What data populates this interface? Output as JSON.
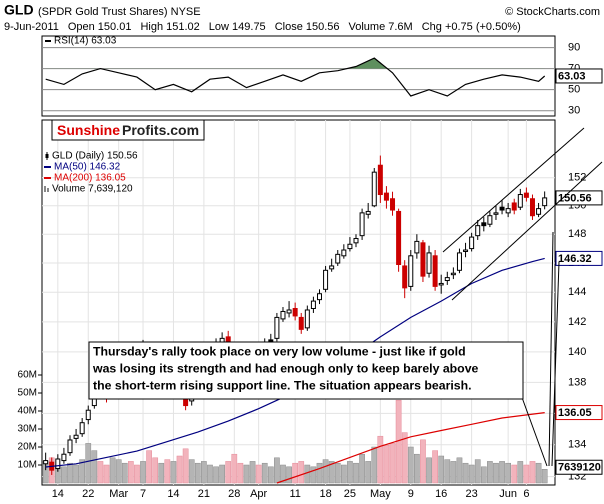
{
  "header": {
    "symbol": "GLD",
    "name": "(SPDR Gold Trust Shares) NYSE",
    "source": "© StockCharts.com",
    "date": "9-Jun-2011",
    "stats": [
      "Open 150.01",
      "High 151.02",
      "Low 149.75",
      "Close 150.56",
      "Volume 7.6M",
      "Chg +0.75 (+0.50%)"
    ]
  },
  "logo": {
    "part1": "Sunshine",
    "part2": "Profits.com"
  },
  "annotation": {
    "lines": [
      "Thursday's rally took place on very low volume - just like if gold",
      "was losing its strength and had enough only to keep barely above",
      "the short-term rising support line. The situation appears bearish."
    ]
  },
  "chart_data": [
    {
      "type": "line",
      "legend": "RSI(14) 63.03",
      "value_label": "63.03",
      "color": "#000000",
      "shade_above": 70,
      "shade_color": "#5e8f5e",
      "x": [
        0,
        3,
        6,
        9,
        12,
        15,
        18,
        21,
        24,
        27,
        30,
        33,
        36,
        39,
        42,
        45,
        48,
        51,
        54,
        57,
        60,
        63,
        66,
        69,
        72,
        75,
        78,
        81,
        82
      ],
      "values": [
        60,
        55,
        65,
        70,
        66,
        62,
        50,
        55,
        48,
        60,
        62,
        52,
        58,
        64,
        58,
        66,
        68,
        72,
        80,
        66,
        44,
        50,
        44,
        55,
        60,
        64,
        62,
        58,
        63.03
      ],
      "xlim": [
        -0.6,
        83.7
      ],
      "ylim": [
        25,
        101
      ],
      "yticks": [
        30,
        50,
        70,
        90
      ]
    },
    {
      "type": "candlestick",
      "legend": "GLD (Daily) 150.56",
      "value_label": "150.56",
      "up_color": "#000000",
      "down_color": "#cc0000",
      "log_scale": true,
      "grid": true,
      "x": [
        0,
        1,
        2,
        3,
        4,
        5,
        6,
        7,
        8,
        9,
        10,
        11,
        12,
        13,
        14,
        15,
        16,
        17,
        18,
        19,
        20,
        21,
        22,
        23,
        24,
        25,
        26,
        27,
        28,
        29,
        30,
        31,
        32,
        33,
        34,
        35,
        36,
        37,
        38,
        39,
        40,
        41,
        42,
        43,
        44,
        45,
        46,
        47,
        48,
        49,
        50,
        51,
        52,
        53,
        54,
        55,
        56,
        57,
        58,
        59,
        60,
        61,
        62,
        63,
        64,
        65,
        66,
        67,
        68,
        69,
        70,
        71,
        72,
        73,
        74,
        75,
        76,
        77,
        78,
        79,
        80,
        81,
        82
      ],
      "open": [
        132.8,
        132.9,
        132.5,
        133.0,
        133.5,
        134.4,
        134.7,
        135.6,
        136.5,
        137.8,
        137.5,
        137.2,
        138.5,
        139.3,
        140.0,
        139.8,
        139.8,
        140.0,
        139.1,
        138.3,
        138.8,
        138.0,
        138.4,
        137.0,
        136.8,
        138.1,
        138.9,
        139.8,
        140.4,
        140.4,
        141.0,
        140.0,
        138.9,
        138.7,
        139.4,
        140.0,
        139.9,
        140.8,
        140.9,
        142.2,
        142.6,
        142.9,
        142.3,
        141.6,
        142.9,
        143.5,
        144.2,
        145.6,
        146.0,
        146.5,
        147.0,
        147.4,
        147.9,
        149.4,
        150.0,
        152.9,
        150.9,
        150.5,
        149.6,
        145.8,
        144.4,
        146.7,
        147.4,
        145.3,
        146.5,
        144.5,
        144.8,
        145.2,
        145.5,
        146.8,
        147.0,
        147.9,
        148.8,
        148.7,
        149.4,
        149.9,
        149.5,
        150.2,
        149.9,
        150.9,
        150.5,
        149.4,
        150.01
      ],
      "high": [
        133.5,
        133.2,
        133.4,
        133.8,
        134.6,
        135.0,
        135.7,
        136.5,
        137.9,
        138.2,
        137.9,
        138.6,
        139.6,
        140.2,
        140.4,
        140.3,
        140.8,
        140.4,
        139.4,
        139.3,
        139.2,
        138.9,
        138.7,
        137.4,
        138.2,
        139.0,
        140.0,
        140.5,
        140.9,
        141.3,
        141.4,
        140.3,
        139.2,
        139.5,
        140.5,
        140.4,
        140.9,
        141.2,
        142.6,
        143.0,
        143.4,
        143.3,
        142.6,
        143.1,
        143.7,
        144.2,
        145.8,
        146.3,
        146.9,
        147.3,
        147.8,
        148.0,
        149.8,
        150.2,
        152.7,
        153.6,
        151.4,
        151.0,
        149.8,
        146.2,
        146.9,
        148.0,
        147.6,
        147.2,
        146.9,
        145.2,
        145.4,
        145.7,
        147.0,
        147.4,
        148.1,
        149.0,
        149.2,
        149.6,
        150.0,
        150.4,
        150.2,
        150.5,
        151.2,
        151.3,
        150.8,
        150.2,
        151.02
      ],
      "low": [
        132.4,
        132.1,
        132.3,
        132.8,
        133.3,
        134.1,
        134.5,
        135.3,
        136.3,
        137.0,
        136.7,
        136.9,
        138.3,
        139.0,
        139.4,
        139.2,
        139.5,
        138.8,
        137.9,
        138.0,
        138.0,
        137.7,
        137.1,
        136.2,
        136.5,
        137.9,
        138.6,
        139.6,
        140.0,
        140.1,
        140.2,
        138.4,
        138.3,
        138.5,
        139.2,
        139.4,
        139.7,
        140.4,
        140.7,
        142.0,
        142.3,
        142.1,
        141.2,
        141.4,
        142.6,
        143.2,
        144.0,
        145.4,
        145.8,
        146.3,
        146.8,
        147.1,
        147.6,
        149.1,
        149.9,
        150.2,
        149.8,
        149.3,
        145.4,
        143.6,
        144.1,
        146.3,
        144.7,
        145.0,
        144.1,
        143.9,
        144.5,
        144.9,
        145.3,
        146.4,
        146.8,
        147.6,
        148.2,
        148.5,
        149.0,
        149.4,
        149.2,
        149.4,
        149.7,
        150.3,
        149.0,
        149.2,
        149.75
      ],
      "close": [
        133.0,
        132.4,
        133.1,
        133.4,
        134.3,
        134.6,
        135.4,
        136.2,
        137.6,
        137.3,
        137.0,
        138.3,
        139.2,
        139.9,
        139.7,
        139.6,
        140.2,
        139.0,
        138.2,
        138.9,
        138.2,
        138.5,
        137.3,
        136.5,
        137.9,
        138.7,
        139.7,
        140.2,
        140.3,
        140.9,
        140.4,
        138.7,
        138.6,
        139.2,
        140.2,
        139.7,
        140.6,
        140.6,
        142.3,
        142.7,
        142.8,
        142.4,
        141.5,
        142.8,
        143.4,
        143.9,
        145.5,
        145.8,
        146.6,
        146.9,
        147.3,
        147.7,
        149.5,
        149.6,
        152.4,
        150.8,
        150.4,
        149.7,
        145.9,
        144.3,
        146.5,
        147.5,
        145.1,
        146.7,
        144.4,
        144.6,
        145.0,
        145.3,
        146.7,
        146.9,
        147.8,
        148.6,
        148.6,
        149.3,
        149.5,
        149.7,
        149.8,
        149.7,
        150.8,
        150.6,
        149.3,
        149.8,
        150.56
      ],
      "lines": [
        {
          "name": "MA(50) 146.32",
          "color": "#000080",
          "value_label": "146.32",
          "x": [
            0,
            5,
            10,
            15,
            20,
            25,
            30,
            35,
            40,
            45,
            50,
            55,
            60,
            65,
            70,
            75,
            80,
            82
          ],
          "values": [
            132.6,
            132.8,
            133.2,
            133.6,
            134.2,
            134.8,
            135.5,
            136.3,
            137.2,
            138.3,
            139.6,
            141.0,
            142.3,
            143.4,
            144.6,
            145.5,
            146.1,
            146.32
          ]
        },
        {
          "name": "MA(200) 136.05",
          "color": "#dd0000",
          "value_label": "136.05",
          "x": [
            38,
            45,
            50,
            55,
            60,
            65,
            70,
            75,
            82
          ],
          "values": [
            131.6,
            132.5,
            133.2,
            133.9,
            134.5,
            134.9,
            135.3,
            135.7,
            136.05
          ]
        }
      ],
      "volume": {
        "name": "Volume 7,639,120",
        "value_label": "7639120",
        "up_color": "#b4b4b4",
        "down_color": "#f2b3bc",
        "values": [
          12000000,
          14000000,
          10000000,
          9000000,
          11000000,
          10000000,
          13000000,
          22000000,
          18000000,
          12000000,
          10000000,
          14000000,
          13000000,
          11000000,
          12000000,
          10000000,
          12000000,
          18000000,
          14000000,
          11000000,
          13000000,
          12000000,
          15000000,
          19000000,
          13000000,
          11000000,
          12000000,
          10000000,
          9000000,
          10000000,
          12000000,
          16000000,
          11000000,
          10000000,
          12000000,
          10000000,
          11000000,
          9000000,
          14000000,
          10000000,
          9000000,
          11000000,
          12000000,
          10000000,
          9000000,
          11000000,
          13000000,
          12000000,
          11000000,
          10000000,
          12000000,
          11000000,
          16000000,
          12000000,
          20000000,
          26000000,
          21000000,
          22000000,
          46000000,
          28000000,
          20000000,
          16000000,
          24000000,
          14000000,
          18000000,
          15000000,
          13000000,
          12000000,
          14000000,
          11000000,
          10000000,
          13000000,
          9000000,
          12000000,
          11000000,
          12000000,
          11000000,
          10000000,
          12000000,
          10000000,
          12000000,
          11000000,
          7639120
        ],
        "y2lim": [
          0,
          60000000
        ],
        "y2ticks": [
          {
            "value": 10000000,
            "label": "10M"
          },
          {
            "value": 20000000,
            "label": "20M"
          },
          {
            "value": 30000000,
            "label": "30M"
          },
          {
            "value": 40000000,
            "label": "40M"
          },
          {
            "value": 50000000,
            "label": "50M"
          },
          {
            "value": 60000000,
            "label": "60M"
          }
        ]
      },
      "xlim": [
        -0.6,
        83.7
      ],
      "ylim": [
        131.6,
        156.2
      ],
      "yticks": [
        132,
        134,
        136,
        138,
        140,
        142,
        144,
        146,
        148,
        150,
        152
      ],
      "xticks": [
        {
          "value": 2,
          "label": "14"
        },
        {
          "value": 7,
          "label": "22"
        },
        {
          "value": 12,
          "label": "Mar"
        },
        {
          "value": 16,
          "label": "7"
        },
        {
          "value": 21,
          "label": "14"
        },
        {
          "value": 26,
          "label": "21"
        },
        {
          "value": 31,
          "label": "28"
        },
        {
          "value": 35,
          "label": "Apr"
        },
        {
          "value": 41,
          "label": "11"
        },
        {
          "value": 46,
          "label": "18"
        },
        {
          "value": 50,
          "label": "25"
        },
        {
          "value": 55,
          "label": "May"
        },
        {
          "value": 60,
          "label": "9"
        },
        {
          "value": 65,
          "label": "16"
        },
        {
          "value": 70,
          "label": "23"
        },
        {
          "value": 76,
          "label": "Jun"
        },
        {
          "value": 79,
          "label": "6"
        }
      ]
    }
  ]
}
